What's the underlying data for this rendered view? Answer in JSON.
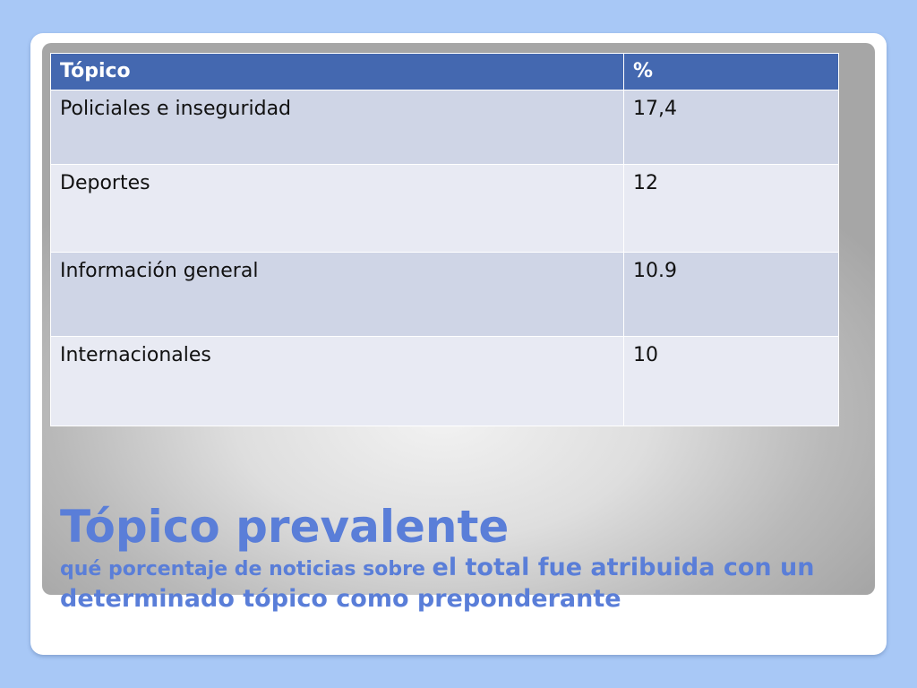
{
  "table": {
    "headers": [
      "Tópico",
      "%"
    ],
    "rows": [
      {
        "topic": "Policiales e inseguridad",
        "percent": "17,4"
      },
      {
        "topic": "Deportes",
        "percent": "12"
      },
      {
        "topic": "Información general",
        "percent": "10.9"
      },
      {
        "topic": "Internacionales",
        "percent": "10"
      }
    ]
  },
  "title": {
    "main": "Tópico prevalente",
    "subtitle_part1": "qué porcentaje de noticias sobre ",
    "subtitle_part2": "el total fue atribuida con un determinado tópico como preponderante"
  },
  "colors": {
    "background": "#a8c8f6",
    "header": "#4468b0",
    "row_odd": "#cfd5e6",
    "row_even": "#e8eaf3",
    "title": "#5a7ed8"
  }
}
